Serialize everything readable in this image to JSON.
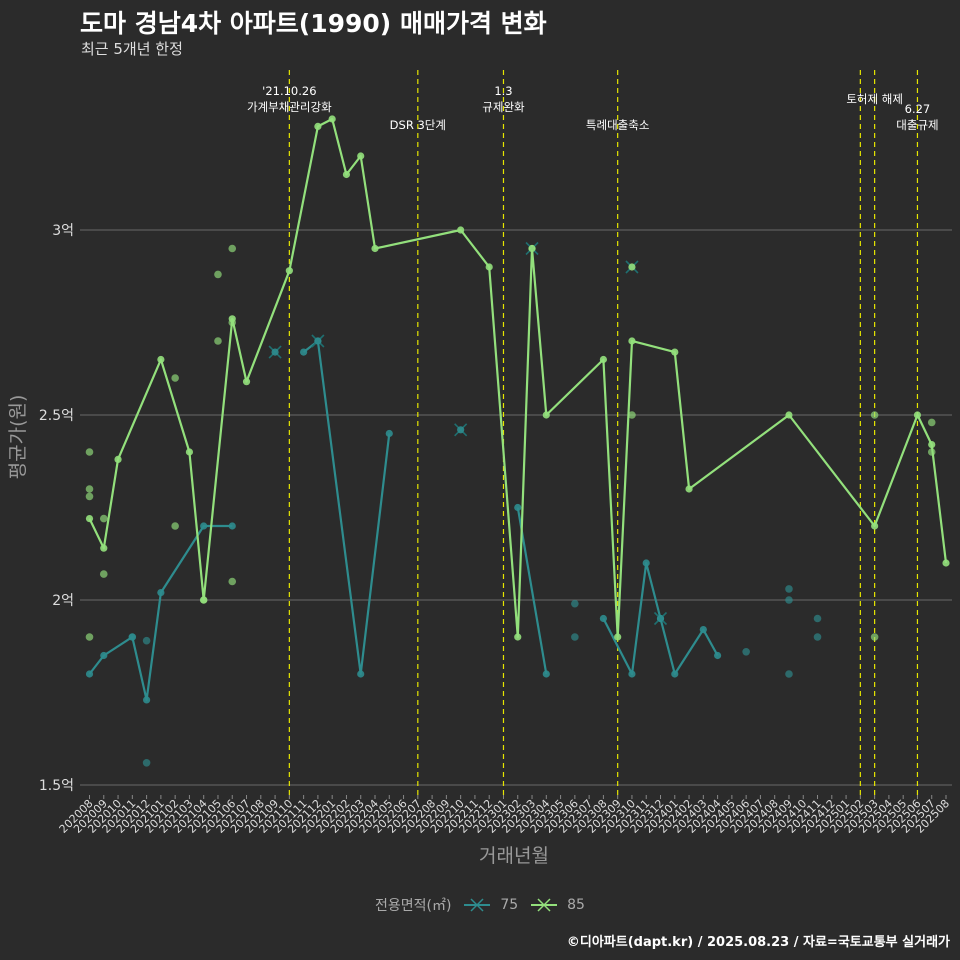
{
  "header": {
    "title": "도마 경남4차 아파트(1990) 매매가격 변화",
    "subtitle": "최근 5개년 한정"
  },
  "caption": "©디아파트(dapt.kr) / 2025.08.23 / 자료=국토교통부 실거래가",
  "legend": {
    "title": "전용면적(㎡)",
    "items": [
      {
        "label": "75",
        "color": "#2e8c8e"
      },
      {
        "label": "85",
        "color": "#93e07c"
      }
    ]
  },
  "chart_data": {
    "type": "line",
    "title": "도마 경남4차 아파트(1990) 매매가격 변화",
    "subtitle": "최근 5개년 한정",
    "xlabel": "거래년월",
    "ylabel": "평균가(원)",
    "categories": [
      "202008",
      "202009",
      "202010",
      "202011",
      "202012",
      "202101",
      "202102",
      "202103",
      "202104",
      "202105",
      "202106",
      "202107",
      "202108",
      "202109",
      "202110",
      "202111",
      "202112",
      "202201",
      "202202",
      "202203",
      "202204",
      "202205",
      "202206",
      "202207",
      "202208",
      "202209",
      "202210",
      "202211",
      "202212",
      "202301",
      "202302",
      "202303",
      "202304",
      "202305",
      "202306",
      "202307",
      "202308",
      "202309",
      "202310",
      "202311",
      "202312",
      "202401",
      "202402",
      "202403",
      "202404",
      "202405",
      "202406",
      "202407",
      "202408",
      "202409",
      "202410",
      "202411",
      "202412",
      "202501",
      "202502",
      "202503",
      "202504",
      "202505",
      "202506",
      "202507",
      "202508"
    ],
    "y_ticks": [
      {
        "value": 1.5,
        "label": "1.5억"
      },
      {
        "value": 2.0,
        "label": "2억"
      },
      {
        "value": 2.5,
        "label": "2.5억"
      },
      {
        "value": 3.0,
        "label": "3억"
      }
    ],
    "ylim": [
      1.48,
      3.45
    ],
    "unit": "억",
    "grid": true,
    "legend_position": "bottom",
    "series": [
      {
        "name": "75",
        "color": "#2e8c8e",
        "line": [
          [
            "202008",
            1.8
          ],
          [
            "202009",
            1.85
          ],
          [
            "202011",
            1.9
          ],
          [
            "202012",
            1.73
          ],
          [
            "202101",
            2.02
          ],
          [
            "202104",
            2.2
          ],
          [
            "202106",
            2.2
          ]
        ],
        "line2": [
          [
            "202111",
            2.67
          ],
          [
            "202112",
            2.7
          ],
          [
            "202203",
            1.8
          ],
          [
            "202205",
            2.45
          ]
        ],
        "line3": [
          [
            "202302",
            2.25
          ],
          [
            "202304",
            1.8
          ]
        ],
        "line4": [
          [
            "202308",
            1.95
          ],
          [
            "202310",
            1.8
          ],
          [
            "202311",
            2.1
          ],
          [
            "202312",
            1.95
          ],
          [
            "202401",
            1.8
          ],
          [
            "202403",
            1.92
          ],
          [
            "202404",
            1.85
          ]
        ],
        "points": [
          [
            "202012",
            1.89
          ],
          [
            "202012",
            1.56
          ],
          [
            "202011",
            1.9
          ],
          [
            "202306",
            1.99
          ],
          [
            "202306",
            1.9
          ],
          [
            "202406",
            1.86
          ],
          [
            "202409",
            2.03
          ],
          [
            "202409",
            2.0
          ],
          [
            "202409",
            1.8
          ],
          [
            "202411",
            1.95
          ],
          [
            "202411",
            1.9
          ]
        ],
        "markers_x": [
          [
            "202109",
            2.67
          ],
          [
            "202112",
            2.7
          ],
          [
            "202210",
            2.46
          ],
          [
            "202312",
            1.95
          ]
        ]
      },
      {
        "name": "85",
        "color": "#93e07c",
        "line": [
          [
            "202008",
            2.22
          ],
          [
            "202009",
            2.14
          ],
          [
            "202010",
            2.38
          ],
          [
            "202101",
            2.65
          ],
          [
            "202103",
            2.4
          ],
          [
            "202104",
            2.0
          ],
          [
            "202106",
            2.76
          ],
          [
            "202107",
            2.59
          ],
          [
            "202110",
            2.89
          ],
          [
            "202112",
            3.28
          ],
          [
            "202201",
            3.3
          ],
          [
            "202202",
            3.15
          ],
          [
            "202203",
            3.2
          ],
          [
            "202204",
            2.95
          ],
          [
            "202210",
            3.0
          ],
          [
            "202212",
            2.9
          ],
          [
            "202302",
            1.9
          ],
          [
            "202303",
            2.95
          ],
          [
            "202304",
            2.5
          ],
          [
            "202308",
            2.65
          ],
          [
            "202309",
            1.9
          ],
          [
            "202310",
            2.7
          ],
          [
            "202401",
            2.67
          ],
          [
            "202402",
            2.3
          ],
          [
            "202409",
            2.5
          ],
          [
            "202503",
            2.2
          ],
          [
            "202506",
            2.5
          ],
          [
            "202507",
            2.42
          ],
          [
            "202508",
            2.1
          ]
        ],
        "points": [
          [
            "202008",
            2.4
          ],
          [
            "202008",
            2.3
          ],
          [
            "202008",
            2.28
          ],
          [
            "202008",
            1.9
          ],
          [
            "202009",
            2.22
          ],
          [
            "202009",
            2.07
          ],
          [
            "202102",
            2.6
          ],
          [
            "202102",
            2.2
          ],
          [
            "202104",
            2.0
          ],
          [
            "202105",
            2.88
          ],
          [
            "202105",
            2.7
          ],
          [
            "202106",
            2.95
          ],
          [
            "202106",
            2.75
          ],
          [
            "202106",
            2.05
          ],
          [
            "202310",
            2.5
          ],
          [
            "202503",
            2.5
          ],
          [
            "202503",
            1.9
          ],
          [
            "202507",
            2.48
          ],
          [
            "202507",
            2.4
          ]
        ],
        "markers_x": [
          [
            "202303",
            2.95
          ],
          [
            "202310",
            2.9
          ]
        ]
      }
    ],
    "events": [
      {
        "x": "202110",
        "label": "'21.10.26\n가계부채관리강화",
        "row": 0
      },
      {
        "x": "202207",
        "label": "DSR 3단계",
        "row": 1
      },
      {
        "x": "202301",
        "label": "1.3\n규제완화",
        "row": 0
      },
      {
        "x": "202309",
        "label": "특례대출축소",
        "row": 1
      },
      {
        "x": "202502",
        "label": "",
        "row": 0
      },
      {
        "x": "202503",
        "label": "토허제 해제",
        "row": 0
      },
      {
        "x": "202506",
        "label": "6.27\n대출규제",
        "row": 1
      }
    ]
  }
}
